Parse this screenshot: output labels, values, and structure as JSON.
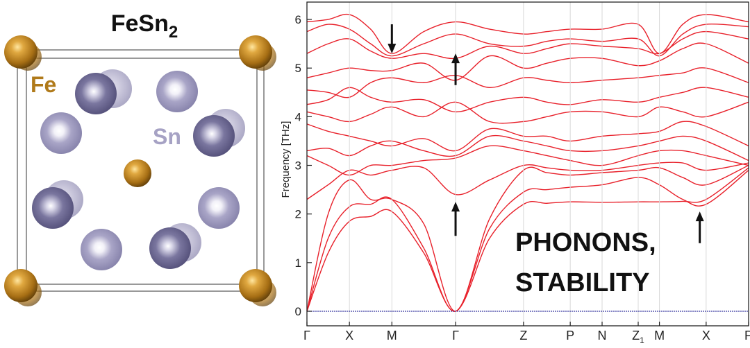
{
  "structure_panel": {
    "title": "FeSn",
    "title_subscript": "2",
    "fe_label": "Fe",
    "sn_label": "Sn",
    "fe_color": "#b07a1a",
    "sn_color": "#a6a2c4",
    "sn_dark_color": "#6e6a94"
  },
  "chart_data": {
    "type": "line",
    "title": "",
    "ylabel": "Frequency [THz]",
    "xlabel": "",
    "ylim": [
      0,
      6.3
    ],
    "yticks": [
      0,
      1,
      2,
      3,
      4,
      5,
      6
    ],
    "grid": false,
    "line_color": "#e8202a",
    "zero_line_color": "#3a3aa0",
    "overlay_text": [
      "PHONONS,",
      "STABILITY"
    ],
    "path_labels": [
      {
        "text": "Γ",
        "sub": "",
        "x": 0
      },
      {
        "text": "X",
        "sub": "",
        "x": 1
      },
      {
        "text": "M",
        "sub": "",
        "x": 2
      },
      {
        "text": "Γ",
        "sub": "",
        "x": 3.5
      },
      {
        "text": "Z",
        "sub": "",
        "x": 5.1
      },
      {
        "text": "P",
        "sub": "",
        "x": 6.2
      },
      {
        "text": "N",
        "sub": "",
        "x": 6.95
      },
      {
        "text": "Z",
        "sub": "1",
        "x": 7.8
      },
      {
        "text": "M",
        "sub": "",
        "x": 8.3
      },
      {
        "text": "X",
        "sub": "",
        "x": 9.4
      },
      {
        "text": "P",
        "sub": "",
        "x": 10.4
      }
    ],
    "x": [
      0,
      0.5,
      1,
      1.5,
      2,
      2.75,
      3.5,
      4.3,
      5.1,
      5.65,
      6.2,
      6.95,
      7.8,
      8.3,
      8.85,
      9.4,
      10.4
    ],
    "series": [
      {
        "values": [
          0,
          1.2,
          1.85,
          1.95,
          2.05,
          1.2,
          0,
          1.5,
          2.2,
          2.22,
          2.25,
          2.24,
          2.25,
          2.25,
          2.26,
          2.3,
          2.95
        ]
      },
      {
        "values": [
          0,
          1.5,
          2.15,
          2.2,
          2.3,
          1.3,
          0,
          1.7,
          2.45,
          2.5,
          2.55,
          2.6,
          2.75,
          2.6,
          2.3,
          2.2,
          2.9
        ]
      },
      {
        "values": [
          0,
          2.0,
          2.7,
          2.3,
          2.3,
          1.8,
          0,
          1.9,
          2.9,
          2.85,
          2.8,
          2.85,
          2.9,
          2.95,
          2.75,
          2.6,
          3.0
        ]
      },
      {
        "values": [
          2.3,
          2.6,
          2.9,
          2.8,
          2.9,
          2.95,
          2.4,
          2.7,
          3.0,
          2.95,
          2.9,
          2.9,
          3.0,
          3.05,
          3.05,
          2.9,
          3.05
        ]
      },
      {
        "values": [
          3.2,
          3.0,
          2.8,
          3.0,
          3.0,
          3.1,
          3.15,
          3.4,
          3.3,
          3.2,
          3.1,
          3.0,
          3.2,
          3.3,
          3.3,
          3.2,
          3.0
        ]
      },
      {
        "values": [
          3.3,
          3.35,
          3.2,
          3.4,
          3.5,
          3.3,
          3.2,
          3.6,
          3.5,
          3.4,
          3.3,
          3.3,
          3.4,
          3.5,
          3.6,
          3.5,
          3.1
        ]
      },
      {
        "values": [
          3.85,
          3.7,
          3.6,
          3.5,
          3.4,
          3.55,
          3.3,
          3.75,
          3.6,
          3.6,
          3.5,
          3.6,
          3.65,
          3.7,
          3.9,
          3.8,
          3.4
        ]
      },
      {
        "values": [
          4.1,
          4.0,
          3.9,
          4.05,
          4.2,
          4.0,
          4.3,
          3.9,
          3.9,
          4.0,
          4.1,
          4.1,
          4.0,
          4.2,
          4.1,
          4.0,
          4.3
        ]
      },
      {
        "values": [
          4.25,
          4.35,
          4.6,
          4.4,
          4.3,
          4.35,
          4.1,
          4.3,
          4.4,
          4.3,
          4.25,
          4.35,
          4.3,
          4.4,
          4.5,
          4.6,
          4.4
        ]
      },
      {
        "values": [
          4.55,
          4.5,
          4.4,
          4.7,
          4.8,
          4.7,
          4.85,
          4.6,
          4.8,
          4.75,
          4.7,
          4.75,
          4.8,
          4.85,
          4.9,
          5.0,
          4.7
        ]
      },
      {
        "values": [
          4.8,
          4.9,
          5.0,
          4.95,
          4.95,
          5.1,
          4.75,
          5.25,
          5.0,
          5.1,
          5.2,
          5.2,
          5.05,
          5.15,
          5.4,
          5.5,
          5.1
        ]
      },
      {
        "values": [
          5.3,
          5.5,
          5.6,
          5.35,
          5.2,
          5.3,
          5.2,
          5.45,
          5.3,
          5.4,
          5.5,
          5.45,
          5.4,
          5.3,
          5.6,
          5.75,
          5.6
        ]
      },
      {
        "values": [
          5.75,
          5.9,
          5.8,
          5.5,
          5.25,
          5.5,
          5.7,
          5.5,
          5.45,
          5.55,
          5.6,
          5.55,
          5.6,
          5.25,
          5.7,
          5.9,
          5.85
        ]
      },
      {
        "values": [
          5.95,
          6.0,
          6.1,
          5.8,
          5.3,
          5.75,
          5.95,
          5.8,
          5.7,
          5.75,
          5.8,
          5.8,
          5.9,
          5.3,
          5.9,
          6.1,
          5.95
        ]
      }
    ],
    "arrows": [
      {
        "x": 2.0,
        "y1": 5.9,
        "y2": 5.3,
        "direction": "down"
      },
      {
        "x": 3.5,
        "y1": 4.65,
        "y2": 5.3,
        "direction": "up"
      },
      {
        "x": 3.5,
        "y1": 1.55,
        "y2": 2.25,
        "direction": "up"
      },
      {
        "x": 9.25,
        "y1": 1.4,
        "y2": 2.05,
        "direction": "up"
      }
    ]
  }
}
